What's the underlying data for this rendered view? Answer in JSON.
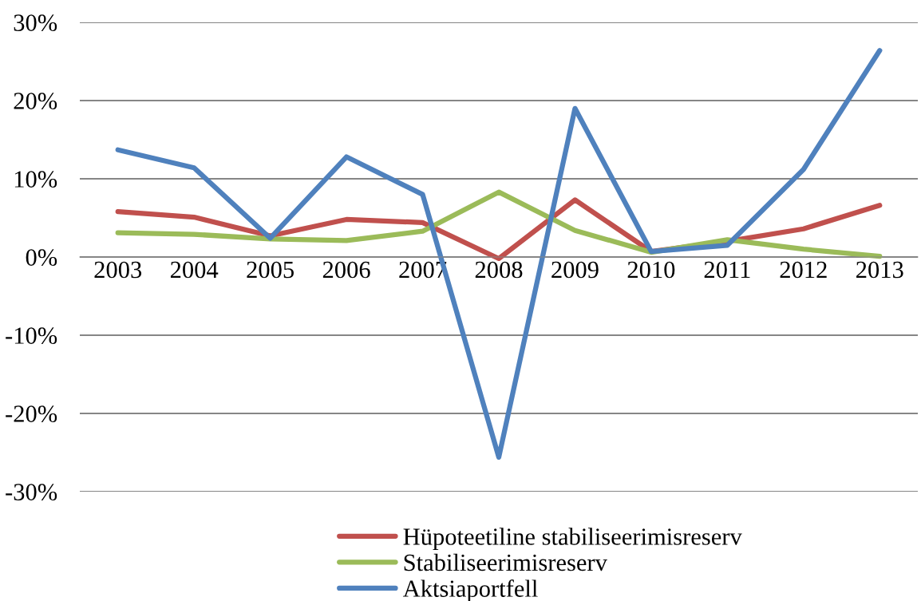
{
  "chart_data": {
    "type": "line",
    "categories": [
      "2003",
      "2004",
      "2005",
      "2006",
      "2007",
      "2008",
      "2009",
      "2010",
      "2011",
      "2012",
      "2013"
    ],
    "series": [
      {
        "name": "Hüpoteetiline stabiliseerimisreserv",
        "color": "#c0504d",
        "values": [
          5.8,
          5.1,
          2.7,
          4.8,
          4.4,
          -0.2,
          7.3,
          0.7,
          2.0,
          3.6,
          6.6
        ]
      },
      {
        "name": "Stabiliseerimisreserv",
        "color": "#9bbb59",
        "values": [
          3.1,
          2.9,
          2.3,
          2.1,
          3.3,
          8.3,
          3.4,
          0.6,
          2.2,
          1.0,
          0.1
        ]
      },
      {
        "name": "Aktsiaportfell",
        "color": "#4f81bd",
        "values": [
          13.7,
          11.4,
          2.4,
          12.8,
          8.0,
          -25.6,
          19.0,
          0.7,
          1.5,
          11.2,
          26.4
        ]
      }
    ],
    "ylim": [
      -30,
      30
    ],
    "yticks": [
      {
        "value": -30,
        "label": "-30%"
      },
      {
        "value": -20,
        "label": "-20%"
      },
      {
        "value": -10,
        "label": "-10%"
      },
      {
        "value": 0,
        "label": "0%"
      },
      {
        "value": 10,
        "label": "10%"
      },
      {
        "value": 20,
        "label": "20%"
      },
      {
        "value": 30,
        "label": "30%"
      }
    ],
    "grid": "y",
    "legend": "bottom",
    "marker": "none",
    "line_style": "solid"
  }
}
